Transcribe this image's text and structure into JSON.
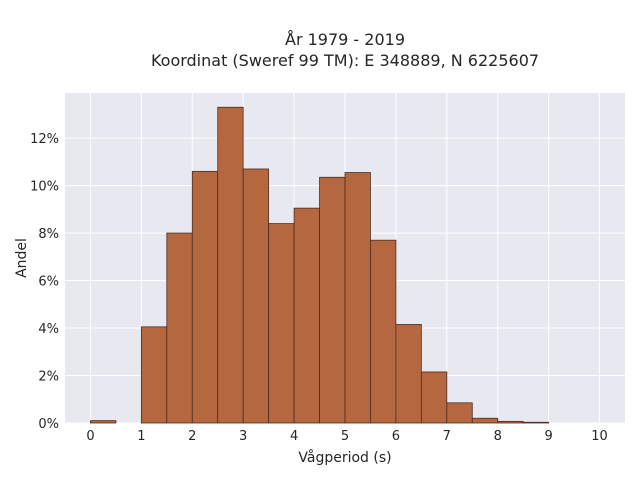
{
  "chart_data": {
    "type": "bar",
    "title_line1": "År 1979 - 2019",
    "title_line2": "Koordinat (Sweref 99 TM): E 348889, N 6225607",
    "xlabel": "Vågperiod (s)",
    "ylabel": "Andel",
    "bin_width": 0.5,
    "bins": [
      0,
      0.5,
      1,
      1.5,
      2,
      2.5,
      3,
      3.5,
      4,
      4.5,
      5,
      5.5,
      6,
      6.5,
      7,
      7.5,
      8,
      8.5,
      9,
      9.5,
      10
    ],
    "values": [
      0.1,
      0,
      4.05,
      8.0,
      10.6,
      13.3,
      10.7,
      8.4,
      9.05,
      10.35,
      10.55,
      7.7,
      4.15,
      2.15,
      0.85,
      0.2,
      0.07,
      0.03,
      0,
      0,
      0
    ],
    "xlim": [
      -0.5,
      10.5
    ],
    "ylim": [
      0,
      13.9
    ],
    "xticks": [
      0,
      1,
      2,
      3,
      4,
      5,
      6,
      7,
      8,
      9,
      10
    ],
    "yticks": [
      0,
      2,
      4,
      6,
      8,
      10,
      12
    ],
    "ytick_suffix": "%",
    "grid": true,
    "colors": {
      "bar": "#b5683f",
      "bar_edge": "#4a2e22",
      "plot_bg": "#e8e8f0",
      "grid": "#ffffff"
    }
  }
}
